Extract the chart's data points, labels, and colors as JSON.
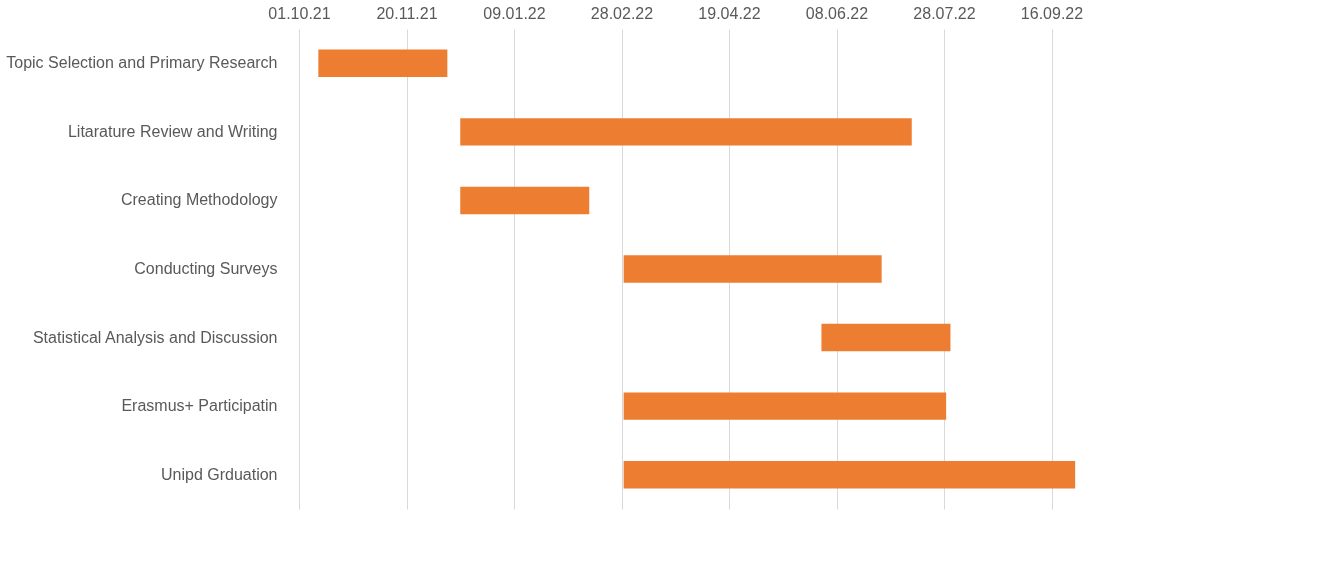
{
  "chart_data": {
    "type": "bar",
    "orientation": "horizontal",
    "categories": [
      "Topic Selection and Primary Research",
      "Litarature Review and Writing",
      "Creating Methodology",
      "Conducting Surveys",
      "Statistical Analysis and Discussion",
      "Erasmus+ Participatin",
      "Unipd Grduation"
    ],
    "base": [
      18910,
      18976,
      18976,
      19052,
      19144,
      19052,
      19052
    ],
    "values": [
      60,
      210,
      60,
      120,
      60,
      150,
      210
    ],
    "color": "#ed7d31",
    "xlim": [
      "2021-10-01",
      "2022-11-05"
    ],
    "xticks": [
      {
        "value": "2021-10-01",
        "label": "01.10.21"
      },
      {
        "value": "2021-11-20",
        "label": "20.11.21"
      },
      {
        "value": "2022-01-09",
        "label": "09.01.22"
      },
      {
        "value": "2022-02-28",
        "label": "28.02.22"
      },
      {
        "value": "2022-04-19",
        "label": "19.04.22"
      },
      {
        "value": "2022-06-08",
        "label": "08.06.22"
      },
      {
        "value": "2022-07-28",
        "label": "28.07.22"
      },
      {
        "value": "2022-09-16",
        "label": "16.09.22"
      }
    ],
    "grid": "x"
  }
}
